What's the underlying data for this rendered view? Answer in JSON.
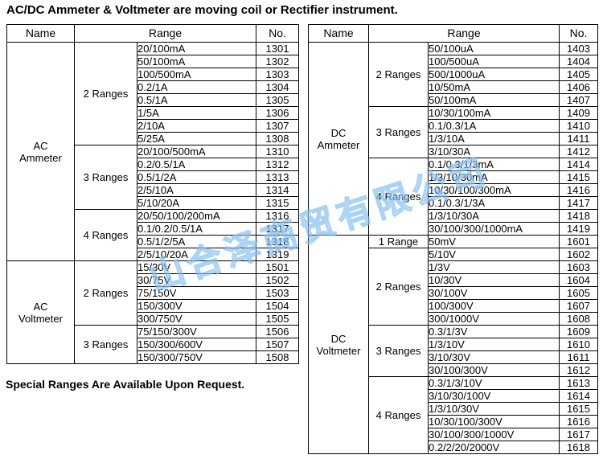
{
  "page": {
    "title": "AC/DC Ammeter & Voltmeter are moving coil or Rectifier instrument.",
    "footnote": "Special Ranges Are Available Upon Request.",
    "watermark_text": "山合泽商贸有限公司",
    "watermark_color": "#8cc0ee",
    "border_color": "#000000"
  },
  "table_headers": {
    "name": "Name",
    "range": "Range",
    "no": "No."
  },
  "tables": [
    {
      "id": "ac-meters-table",
      "groups": [
        {
          "name": "AC Ammeter",
          "subgroups": [
            {
              "label": "2 Ranges",
              "rows": [
                [
                  "20/100mA",
                  "1301"
                ],
                [
                  "50/100mA",
                  "1302"
                ],
                [
                  "100/500mA",
                  "1303"
                ],
                [
                  "0.2/1A",
                  "1304"
                ],
                [
                  "0.5/1A",
                  "1305"
                ],
                [
                  "1/5A",
                  "1306"
                ],
                [
                  "2/10A",
                  "1307"
                ],
                [
                  "5/25A",
                  "1308"
                ]
              ]
            },
            {
              "label": "3 Ranges",
              "rows": [
                [
                  "20/100/500mA",
                  "1310"
                ],
                [
                  "0.2/0.5/1A",
                  "1312"
                ],
                [
                  "0.5/1/2A",
                  "1313"
                ],
                [
                  "2/5/10A",
                  "1314"
                ],
                [
                  "5/10/20A",
                  "1315"
                ]
              ]
            },
            {
              "label": "4 Ranges",
              "rows": [
                [
                  "20/50/100/200mA",
                  "1316"
                ],
                [
                  "0.1/0.2/0.5/1A",
                  "1317"
                ],
                [
                  "0.5/1/2/5A",
                  "1318"
                ],
                [
                  "2/5/10/20A",
                  "1319"
                ]
              ]
            }
          ]
        },
        {
          "name": "AC Voltmeter",
          "subgroups": [
            {
              "label": "2 Ranges",
              "rows": [
                [
                  "15/30V",
                  "1501"
                ],
                [
                  "30/75V",
                  "1502"
                ],
                [
                  "75/150V",
                  "1503"
                ],
                [
                  "150/300V",
                  "1504"
                ],
                [
                  "300/750V",
                  "1505"
                ]
              ]
            },
            {
              "label": "3 Ranges",
              "rows": [
                [
                  "75/150/300V",
                  "1506"
                ],
                [
                  "150/300/600V",
                  "1507"
                ],
                [
                  "150/300/750V",
                  "1508"
                ]
              ]
            }
          ]
        }
      ]
    },
    {
      "id": "dc-meters-table",
      "groups": [
        {
          "name": "DC Ammeter",
          "subgroups": [
            {
              "label": "2 Ranges",
              "rows": [
                [
                  "50/100uA",
                  "1403"
                ],
                [
                  "100/500uA",
                  "1404"
                ],
                [
                  "500/1000uA",
                  "1405"
                ],
                [
                  "10/50mA",
                  "1406"
                ],
                [
                  "50/100mA",
                  "1407"
                ]
              ]
            },
            {
              "label": "3 Ranges",
              "rows": [
                [
                  "10/30/100mA",
                  "1409"
                ],
                [
                  "0.1/0.3/1A",
                  "1410"
                ],
                [
                  "1/3/10A",
                  "1411"
                ],
                [
                  "3/10/30A",
                  "1412"
                ]
              ]
            },
            {
              "label": "4 Ranges",
              "rows": [
                [
                  "0.1/0.3/1/3mA",
                  "1414"
                ],
                [
                  "1/3/10/30mA",
                  "1415"
                ],
                [
                  "10/30/100/300mA",
                  "1416"
                ],
                [
                  "0.1/0.3/1/3A",
                  "1417"
                ],
                [
                  "1/3/10/30A",
                  "1418"
                ],
                [
                  "30/100/300/1000mA",
                  "1419"
                ]
              ]
            }
          ]
        },
        {
          "name": "DC Voltmeter",
          "subgroups": [
            {
              "label": "1 Range",
              "rows": [
                [
                  "50mV",
                  "1601"
                ]
              ]
            },
            {
              "label": "2 Ranges",
              "rows": [
                [
                  "5/10V",
                  "1602"
                ],
                [
                  "1/3V",
                  "1603"
                ],
                [
                  "10/30V",
                  "1604"
                ],
                [
                  "30/100V",
                  "1605"
                ],
                [
                  "100/300V",
                  "1607"
                ],
                [
                  "300/1000V",
                  "1608"
                ]
              ]
            },
            {
              "label": "3 Ranges",
              "rows": [
                [
                  "0.3/1/3V",
                  "1609"
                ],
                [
                  "1/3/10V",
                  "1610"
                ],
                [
                  "3/10/30V",
                  "1611"
                ],
                [
                  "30/100/300V",
                  "1612"
                ]
              ]
            },
            {
              "label": "4 Ranges",
              "rows": [
                [
                  "0.3/1/3/10V",
                  "1613"
                ],
                [
                  "3/10/30/100V",
                  "1614"
                ],
                [
                  "1/3/10/30V",
                  "1615"
                ],
                [
                  "10/30/100/300V",
                  "1616"
                ],
                [
                  "30/100/300/1000V",
                  "1617"
                ],
                [
                  "0.2/2/20/2000V",
                  "1618"
                ]
              ]
            }
          ]
        }
      ]
    }
  ]
}
